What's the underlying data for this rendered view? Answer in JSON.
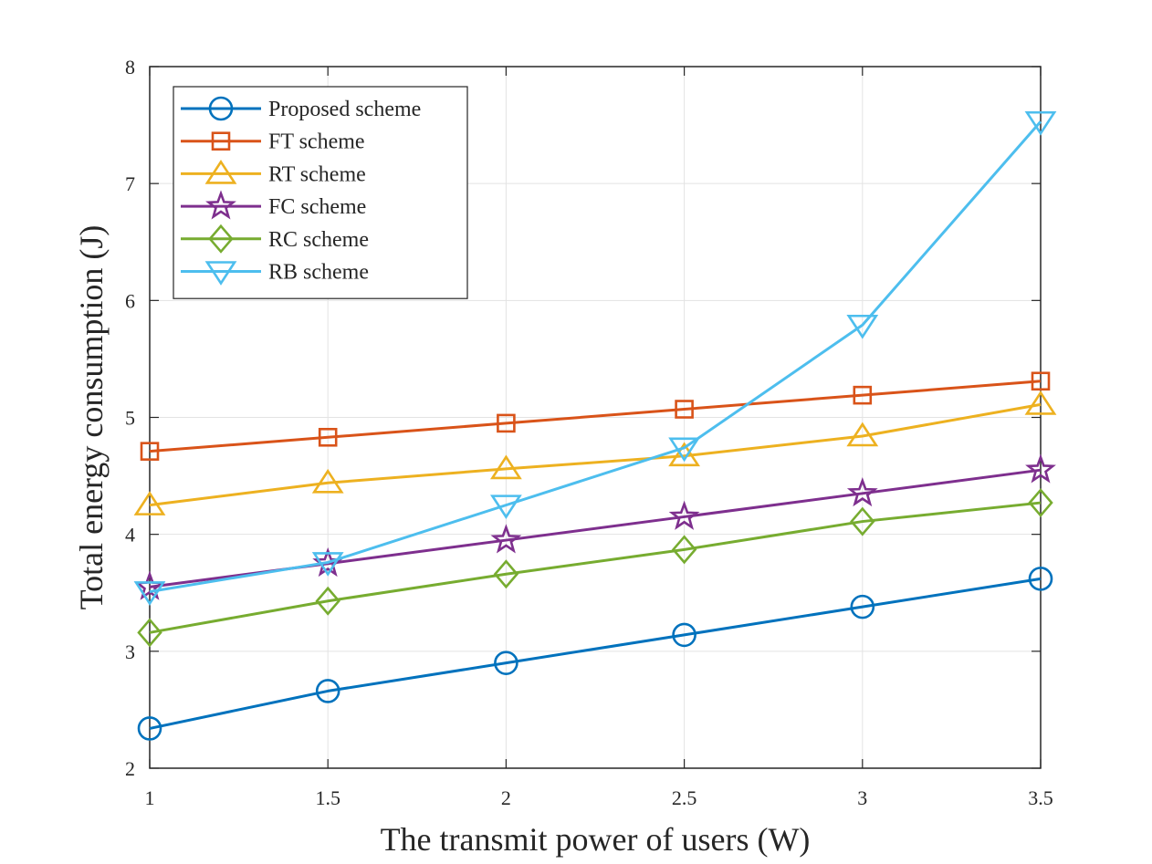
{
  "chart_data": {
    "type": "line",
    "title": "",
    "xlabel": "The transmit power of users (W)",
    "ylabel": "Total energy consumption (J)",
    "xlim": [
      1,
      3.5
    ],
    "ylim": [
      2,
      8
    ],
    "x_ticks": [
      "1",
      "1.5",
      "2",
      "2.5",
      "3",
      "3.5"
    ],
    "y_ticks": [
      "2",
      "3",
      "4",
      "5",
      "6",
      "7",
      "8"
    ],
    "grid": true,
    "legend_position": "top-left",
    "x": [
      1,
      1.5,
      2,
      2.5,
      3,
      3.5
    ],
    "series": [
      {
        "name": "Proposed scheme",
        "marker": "circle",
        "color": "#0072BD",
        "values": [
          2.34,
          2.66,
          2.9,
          3.14,
          3.38,
          3.62
        ]
      },
      {
        "name": "FT scheme",
        "marker": "square",
        "color": "#D95319",
        "values": [
          4.71,
          4.83,
          4.95,
          5.07,
          5.19,
          5.31
        ]
      },
      {
        "name": "RT scheme",
        "marker": "triangle-up",
        "color": "#EDB120",
        "values": [
          4.25,
          4.44,
          4.56,
          4.67,
          4.84,
          5.11
        ]
      },
      {
        "name": "FC scheme",
        "marker": "star",
        "color": "#7E2F8E",
        "values": [
          3.55,
          3.75,
          3.95,
          4.15,
          4.35,
          4.55
        ]
      },
      {
        "name": "RC scheme",
        "marker": "diamond",
        "color": "#77AC30",
        "values": [
          3.16,
          3.43,
          3.66,
          3.87,
          4.11,
          4.27
        ]
      },
      {
        "name": "RB scheme",
        "marker": "triangle-down",
        "color": "#4DBEEE",
        "values": [
          3.51,
          3.76,
          4.25,
          4.74,
          5.79,
          7.53
        ]
      }
    ]
  }
}
